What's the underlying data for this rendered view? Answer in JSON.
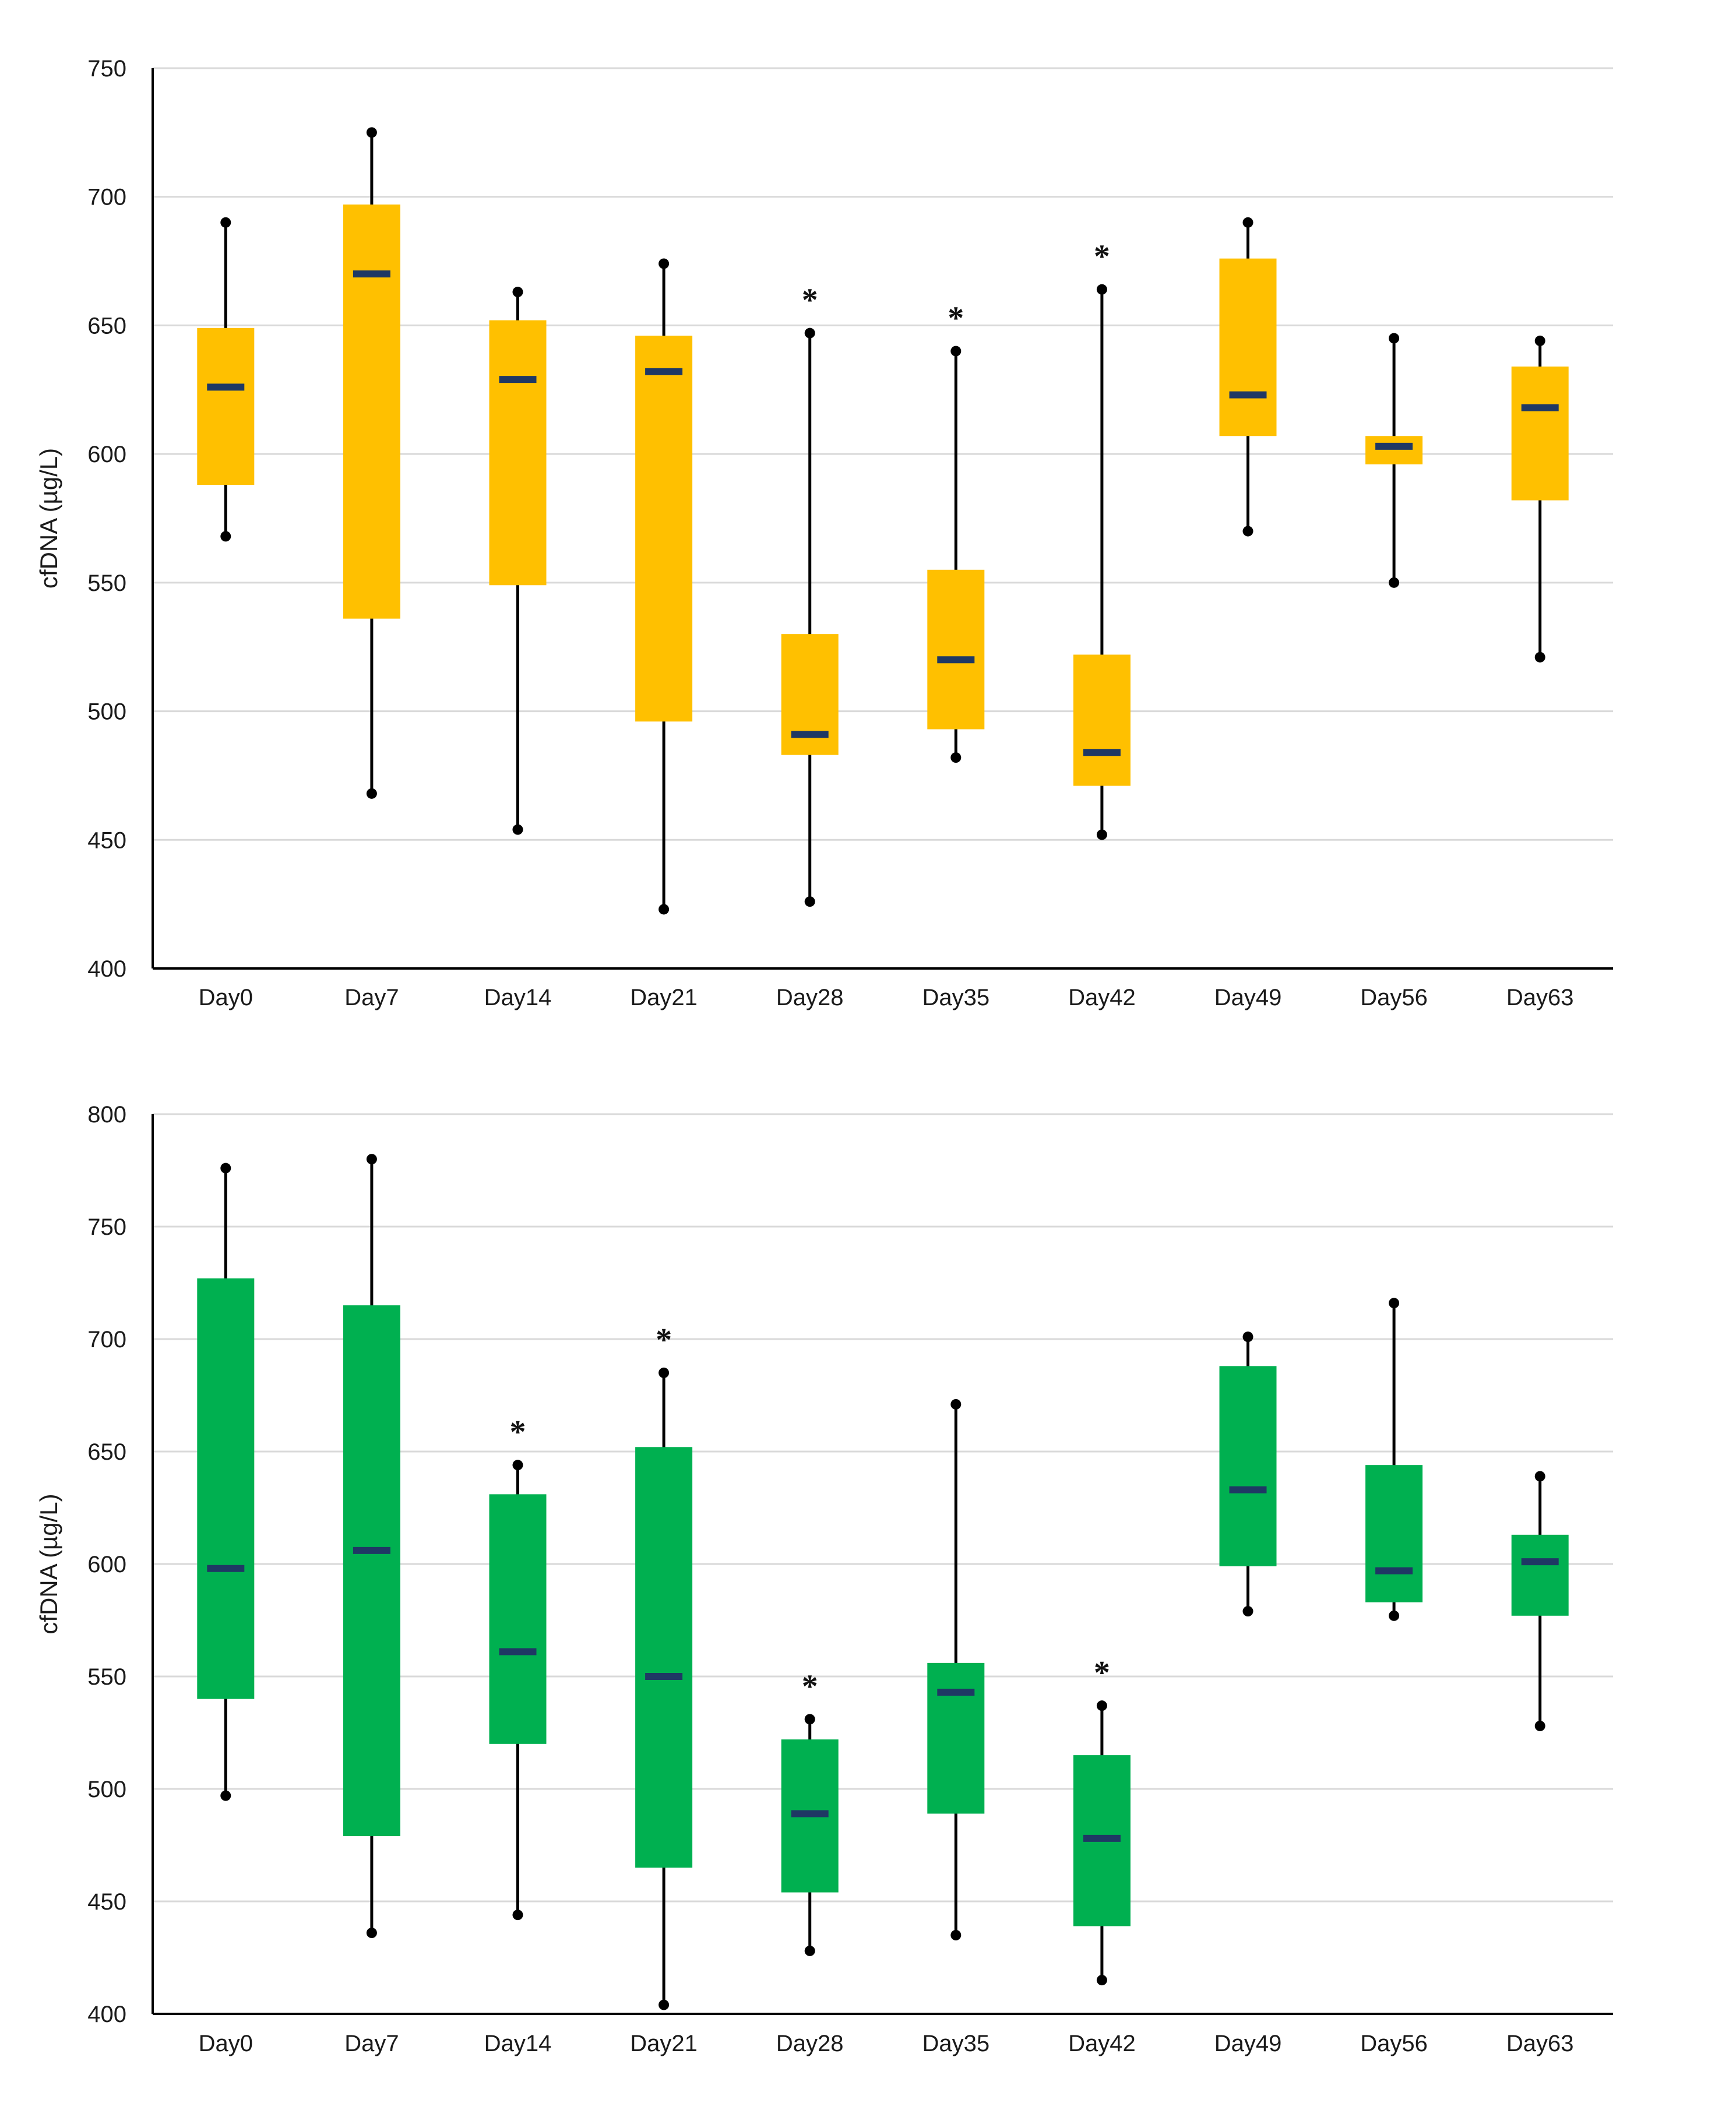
{
  "chart_data": [
    {
      "type": "box",
      "title": "",
      "xlabel": "",
      "ylabel": "cfDNA (µg/L)",
      "ylim": [
        400,
        750
      ],
      "yticks": [
        400,
        450,
        500,
        550,
        600,
        650,
        700,
        750
      ],
      "grid": true,
      "colors": {
        "box": "#FFC000",
        "median": "#1F3864",
        "whisker": "#000000"
      },
      "categories": [
        "Day0",
        "Day7",
        "Day14",
        "Day21",
        "Day28",
        "Day35",
        "Day42",
        "Day49",
        "Day56",
        "Day63"
      ],
      "boxes": [
        {
          "min": 568,
          "q1": 588,
          "median": 626,
          "q3": 649,
          "max": 690,
          "significant": false
        },
        {
          "min": 468,
          "q1": 536,
          "median": 670,
          "q3": 697,
          "max": 725,
          "significant": false
        },
        {
          "min": 454,
          "q1": 549,
          "median": 629,
          "q3": 652,
          "max": 663,
          "significant": false
        },
        {
          "min": 423,
          "q1": 496,
          "median": 632,
          "q3": 646,
          "max": 674,
          "significant": false
        },
        {
          "min": 426,
          "q1": 483,
          "median": 491,
          "q3": 530,
          "max": 647,
          "significant": true
        },
        {
          "min": 482,
          "q1": 493,
          "median": 520,
          "q3": 555,
          "max": 640,
          "significant": true
        },
        {
          "min": 452,
          "q1": 471,
          "median": 484,
          "q3": 522,
          "max": 664,
          "significant": true
        },
        {
          "min": 570,
          "q1": 607,
          "median": 623,
          "q3": 676,
          "max": 690,
          "significant": false
        },
        {
          "min": 550,
          "q1": 596,
          "median": 603,
          "q3": 607,
          "max": 645,
          "significant": false
        },
        {
          "min": 521,
          "q1": 582,
          "median": 618,
          "q3": 634,
          "max": 644,
          "significant": false
        }
      ],
      "significance_marker": "*"
    },
    {
      "type": "box",
      "title": "",
      "xlabel": "",
      "ylabel": "cfDNA (µg/L)",
      "ylim": [
        400,
        800
      ],
      "yticks": [
        400,
        450,
        500,
        550,
        600,
        650,
        700,
        750,
        800
      ],
      "grid": true,
      "colors": {
        "box": "#00B050",
        "median": "#1F3864",
        "whisker": "#000000"
      },
      "categories": [
        "Day0",
        "Day7",
        "Day14",
        "Day21",
        "Day28",
        "Day35",
        "Day42",
        "Day49",
        "Day56",
        "Day63"
      ],
      "boxes": [
        {
          "min": 497,
          "q1": 540,
          "median": 598,
          "q3": 727,
          "max": 776,
          "significant": false
        },
        {
          "min": 436,
          "q1": 479,
          "median": 606,
          "q3": 715,
          "max": 780,
          "significant": false
        },
        {
          "min": 444,
          "q1": 520,
          "median": 561,
          "q3": 631,
          "max": 644,
          "significant": true
        },
        {
          "min": 404,
          "q1": 465,
          "median": 550,
          "q3": 652,
          "max": 685,
          "significant": true
        },
        {
          "min": 428,
          "q1": 454,
          "median": 489,
          "q3": 522,
          "max": 531,
          "significant": true
        },
        {
          "min": 435,
          "q1": 489,
          "median": 543,
          "q3": 556,
          "max": 671,
          "significant": false
        },
        {
          "min": 415,
          "q1": 439,
          "median": 478,
          "q3": 515,
          "max": 537,
          "significant": true
        },
        {
          "min": 579,
          "q1": 599,
          "median": 633,
          "q3": 688,
          "max": 701,
          "significant": false
        },
        {
          "min": 577,
          "q1": 583,
          "median": 597,
          "q3": 644,
          "max": 716,
          "significant": false
        },
        {
          "min": 528,
          "q1": 577,
          "median": 601,
          "q3": 613,
          "max": 639,
          "significant": false
        }
      ],
      "significance_marker": "*"
    }
  ]
}
